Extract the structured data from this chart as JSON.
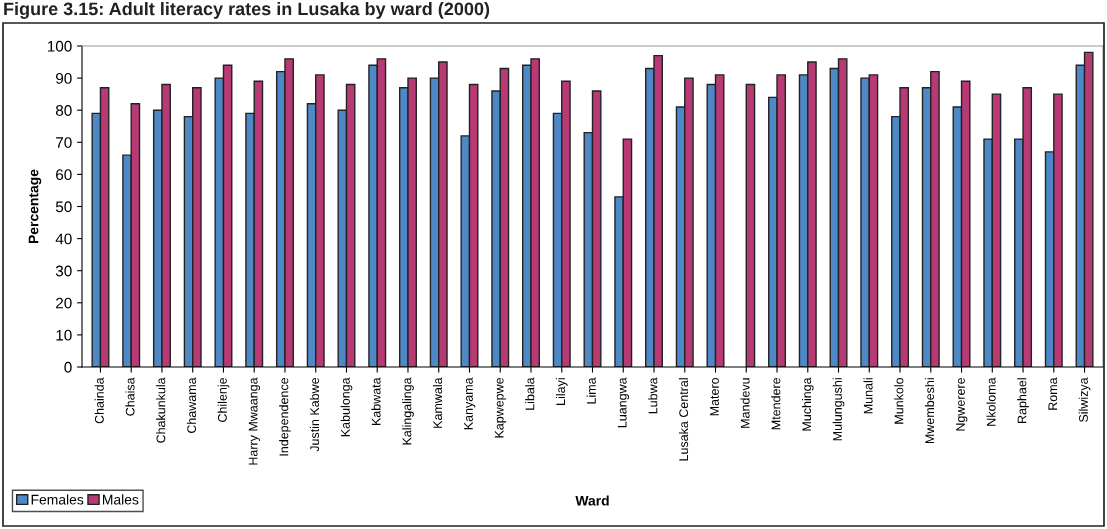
{
  "chart_data": {
    "type": "bar",
    "title": "Figure 3.15: Adult literacy rates in Lusaka by ward (2000)",
    "xlabel": "Ward",
    "ylabel": "Percentage",
    "categories": [
      "Chainda",
      "Chaisa",
      "Chakunkula",
      "Chawama",
      "Chilenje",
      "Harry Mwaanga",
      "Independence",
      "Justin Kabwe",
      "Kabulonga",
      "Kabwata",
      "Kalingalinga",
      "Kamwala",
      "Kanyama",
      "Kapwepwe",
      "Libala",
      "Lilayi",
      "Lima",
      "Luangwa",
      "Lubwa",
      "Lusaka Central",
      "Matero",
      "Mandevu",
      "Mtendere",
      "Muchinga",
      "Mulungushi",
      "Munali",
      "Munkolo",
      "Mwembeshi",
      "Ngwerere",
      "Nkoloma",
      "Raphael",
      "Roma",
      "Silwizya"
    ],
    "series": [
      {
        "name": "Females",
        "color": "#4f88c6",
        "values": [
          79,
          66,
          80,
          78,
          90,
          79,
          92,
          82,
          80,
          94,
          87,
          90,
          72,
          86,
          94,
          79,
          73,
          53,
          93,
          81,
          88,
          null,
          84,
          91,
          93,
          90,
          78,
          87,
          81,
          71,
          71,
          67,
          94
        ]
      },
      {
        "name": "Males",
        "color": "#b73a75",
        "values": [
          87,
          82,
          88,
          87,
          94,
          89,
          96,
          91,
          88,
          96,
          90,
          95,
          88,
          93,
          96,
          89,
          86,
          71,
          97,
          90,
          91,
          88,
          91,
          95,
          96,
          91,
          87,
          92,
          89,
          85,
          87,
          85,
          98
        ]
      }
    ],
    "ylim": [
      0,
      100
    ],
    "yticks": [
      0,
      10,
      20,
      30,
      40,
      50,
      60,
      70,
      80,
      90,
      100
    ],
    "grid": false,
    "legend": "bottom left"
  }
}
